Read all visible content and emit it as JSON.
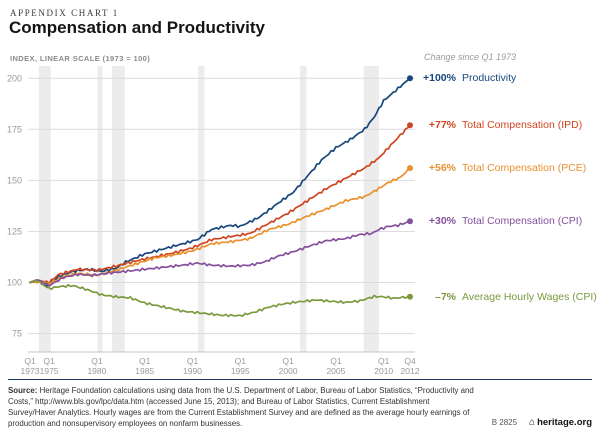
{
  "header": {
    "kicker": "APPENDIX CHART 1",
    "title": "Compensation and Productivity"
  },
  "chart_data": {
    "type": "line",
    "title": "Compensation and Productivity",
    "annotation": "Change since Q1 1973",
    "y_axis": {
      "label": "INDEX, LINEAR SCALE (1973 = 100)",
      "ticks": [
        75,
        100,
        125,
        150,
        175,
        200
      ],
      "range": [
        66,
        206
      ]
    },
    "x_axis": {
      "range": [
        1973.0,
        2012.75
      ],
      "ticks": [
        {
          "q": "Q1",
          "year": "1973",
          "t": 1973.0
        },
        {
          "q": "Q1",
          "year": "1975",
          "t": 1975.0
        },
        {
          "q": "Q1",
          "year": "1980",
          "t": 1980.0
        },
        {
          "q": "Q1",
          "year": "1985",
          "t": 1985.0
        },
        {
          "q": "Q1",
          "year": "1990",
          "t": 1990.0
        },
        {
          "q": "Q1",
          "year": "1995",
          "t": 1995.0
        },
        {
          "q": "Q1",
          "year": "2000",
          "t": 2000.0
        },
        {
          "q": "Q1",
          "year": "2005",
          "t": 2005.0
        },
        {
          "q": "Q1",
          "year": "2010",
          "t": 2010.0
        },
        {
          "q": "Q4",
          "year": "2012",
          "t": 2012.75
        }
      ]
    },
    "colors": {
      "band": "#ececec",
      "grid": "#dcdcdc",
      "axis_text": "#999999",
      "baseline": "#c5c5c5"
    },
    "recessions": [
      [
        1973.92,
        1975.17
      ],
      [
        1980.08,
        1980.58
      ],
      [
        1981.58,
        1982.92
      ],
      [
        1990.58,
        1991.25
      ],
      [
        2001.25,
        2001.92
      ],
      [
        2007.92,
        2009.5
      ]
    ],
    "series": [
      {
        "name": "Productivity",
        "change": "+100%",
        "color": "#17477c",
        "anchors": [
          [
            1973,
            100
          ],
          [
            1973.75,
            101
          ],
          [
            1974.75,
            98.5
          ],
          [
            1976,
            103
          ],
          [
            1977.5,
            105.5
          ],
          [
            1979,
            106.5
          ],
          [
            1980.5,
            105.5
          ],
          [
            1982,
            107
          ],
          [
            1983,
            110
          ],
          [
            1985,
            114
          ],
          [
            1987,
            116.5
          ],
          [
            1989,
            119
          ],
          [
            1990.5,
            121
          ],
          [
            1992,
            126
          ],
          [
            1994,
            128
          ],
          [
            1995,
            127.5
          ],
          [
            1997,
            132
          ],
          [
            1999,
            139
          ],
          [
            2000.5,
            144
          ],
          [
            2002,
            152
          ],
          [
            2003.5,
            160
          ],
          [
            2005,
            166
          ],
          [
            2006.5,
            170
          ],
          [
            2008,
            175
          ],
          [
            2009,
            181
          ],
          [
            2010,
            189
          ],
          [
            2011,
            193
          ],
          [
            2012,
            197
          ],
          [
            2012.75,
            200
          ]
        ]
      },
      {
        "name": "Total Compensation (IPD)",
        "change": "+77%",
        "color": "#cf4520",
        "anchors": [
          [
            1973,
            100
          ],
          [
            1974,
            101
          ],
          [
            1975,
            100
          ],
          [
            1976,
            104
          ],
          [
            1978,
            106.5
          ],
          [
            1980,
            106
          ],
          [
            1982,
            108
          ],
          [
            1984,
            110.5
          ],
          [
            1986,
            112.5
          ],
          [
            1988,
            114.5
          ],
          [
            1990,
            117
          ],
          [
            1992,
            121
          ],
          [
            1994,
            122.5
          ],
          [
            1996,
            124
          ],
          [
            1998,
            129
          ],
          [
            2000,
            134
          ],
          [
            2002,
            140
          ],
          [
            2004,
            146
          ],
          [
            2006,
            151
          ],
          [
            2008,
            156
          ],
          [
            2009.5,
            161
          ],
          [
            2010.5,
            166
          ],
          [
            2011.5,
            171
          ],
          [
            2012.75,
            177
          ]
        ]
      },
      {
        "name": "Total Compensation (PCE)",
        "change": "+56%",
        "color": "#e9912d",
        "anchors": [
          [
            1973,
            100
          ],
          [
            1974,
            100.5
          ],
          [
            1975,
            99.5
          ],
          [
            1976.5,
            103
          ],
          [
            1978,
            104.5
          ],
          [
            1980,
            103.5
          ],
          [
            1982,
            106
          ],
          [
            1984,
            109
          ],
          [
            1986,
            112
          ],
          [
            1988,
            113.5
          ],
          [
            1990,
            115.5
          ],
          [
            1992,
            119
          ],
          [
            1994,
            120
          ],
          [
            1996,
            121.5
          ],
          [
            1998,
            126
          ],
          [
            2000,
            128.5
          ],
          [
            2002,
            132.5
          ],
          [
            2004,
            136
          ],
          [
            2006,
            140
          ],
          [
            2008,
            142
          ],
          [
            2009.5,
            146
          ],
          [
            2010.5,
            149
          ],
          [
            2011.75,
            151.5
          ],
          [
            2012.75,
            156
          ]
        ]
      },
      {
        "name": "Total Compensation (CPI)",
        "change": "+30%",
        "color": "#86509c",
        "anchors": [
          [
            1973,
            100
          ],
          [
            1973.75,
            101.5
          ],
          [
            1975,
            98.5
          ],
          [
            1976.5,
            102.5
          ],
          [
            1978,
            104
          ],
          [
            1979.5,
            103.5
          ],
          [
            1981,
            104.5
          ],
          [
            1983,
            105.5
          ],
          [
            1985,
            106.5
          ],
          [
            1987,
            107.5
          ],
          [
            1989,
            108.5
          ],
          [
            1990.5,
            109.5
          ],
          [
            1992,
            108.5
          ],
          [
            1994,
            108
          ],
          [
            1996,
            108.5
          ],
          [
            1997.5,
            110
          ],
          [
            1999,
            113
          ],
          [
            2000.5,
            115
          ],
          [
            2002,
            117.5
          ],
          [
            2004,
            120.5
          ],
          [
            2006,
            121.5
          ],
          [
            2007.5,
            123.5
          ],
          [
            2008.75,
            124
          ],
          [
            2009.5,
            126
          ],
          [
            2010.5,
            127.5
          ],
          [
            2011.5,
            128
          ],
          [
            2012.75,
            130
          ]
        ]
      },
      {
        "name": "Average Hourly Wages (CPI)",
        "change": "–7%",
        "color": "#7a9a3e",
        "anchors": [
          [
            1973,
            100
          ],
          [
            1973.75,
            101
          ],
          [
            1975,
            97
          ],
          [
            1976,
            98
          ],
          [
            1977.5,
            98.5
          ],
          [
            1979,
            96.5
          ],
          [
            1980.5,
            94
          ],
          [
            1982,
            93
          ],
          [
            1983.5,
            92.5
          ],
          [
            1985,
            90
          ],
          [
            1987,
            88
          ],
          [
            1989,
            86
          ],
          [
            1991,
            85
          ],
          [
            1993,
            84
          ],
          [
            1995,
            83.8
          ],
          [
            1996.5,
            85.5
          ],
          [
            1998,
            88
          ],
          [
            1999.5,
            89.5
          ],
          [
            2001,
            90.5
          ],
          [
            2003,
            91.5
          ],
          [
            2004.5,
            90.8
          ],
          [
            2006,
            90.3
          ],
          [
            2007.5,
            91
          ],
          [
            2009,
            93.2
          ],
          [
            2010,
            93
          ],
          [
            2011,
            92.3
          ],
          [
            2012.75,
            93
          ]
        ]
      }
    ]
  },
  "footer": {
    "source_label": "Source:",
    "source_text": "Heritage Foundation calculations using data from the U.S. Department of Labor, Bureau of Labor Statistics, “Productivity and Costs,” http://www.bls.gov/lpc/data.htm (accessed June 15, 2013); and Bureau of Labor Statistics, Current Establishment Survey/Haver Analytics. Hourly wages are from the Current Establishment Survey and are defined as the average hourly earnings of production and nonsupervisory employees on nonfarm businesses.",
    "chart_id": "B 2825",
    "site": "heritage.org"
  }
}
